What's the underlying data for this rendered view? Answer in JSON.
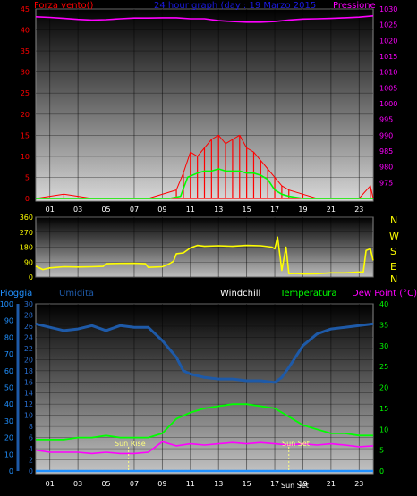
{
  "header": {
    "left_label": "Forza vento()",
    "title": "24 hour graph (day : 19 Marzo 2015",
    "right_label": "Pressione"
  },
  "middle": {
    "compass": [
      "N",
      "W",
      "S",
      "E",
      "N"
    ]
  },
  "legend": {
    "rain": "Pioggia",
    "humidity": "Umidita",
    "windchill": "Windchill",
    "temperature": "Temperatura",
    "dewpoint": "Dew Point (°C)"
  },
  "annotations": {
    "sunrise": "Sun Rise",
    "sunset": "Sun Set",
    "sunset_time_label": "Sun Set"
  },
  "colors": {
    "wind": "#ff0000",
    "wind_avg": "#00ff00",
    "pressure": "#ff00ff",
    "direction": "#ffff00",
    "humidity": "#1e5aa8",
    "temperature": "#00ff00",
    "dewpoint": "#ff00ff",
    "rain": "#2090ff",
    "title": "#1a1ae0"
  },
  "chart_data": [
    {
      "type": "line",
      "name": "wind-pressure",
      "x_ticks": [
        "01",
        "03",
        "05",
        "07",
        "09",
        "11",
        "13",
        "15",
        "17",
        "19",
        "21",
        "23"
      ],
      "xlim": [
        0,
        24
      ],
      "left_axis": {
        "label": "Forza vento()",
        "lim": [
          0,
          45
        ],
        "ticks": [
          0,
          5,
          10,
          15,
          20,
          25,
          30,
          35,
          40,
          45
        ]
      },
      "right_axis": {
        "label": "Pressione",
        "lim": [
          970,
          1030
        ],
        "ticks": [
          975,
          980,
          985,
          990,
          995,
          1000,
          1005,
          1010,
          1015,
          1020,
          1025,
          1030
        ]
      },
      "series": [
        {
          "name": "Pressione",
          "axis": "right",
          "x": [
            0,
            1,
            2,
            3,
            4,
            5,
            6,
            7,
            8,
            9,
            10,
            11,
            12,
            13,
            14,
            15,
            16,
            17,
            18,
            19,
            20,
            21,
            22,
            23,
            24
          ],
          "y": [
            1027.5,
            1027.3,
            1027.0,
            1026.7,
            1026.5,
            1026.6,
            1026.9,
            1027.1,
            1027.1,
            1027.2,
            1027.2,
            1026.9,
            1026.9,
            1026.3,
            1026.0,
            1025.8,
            1025.8,
            1026.0,
            1026.5,
            1026.8,
            1026.9,
            1027.0,
            1027.2,
            1027.4,
            1027.8
          ]
        },
        {
          "name": "Forza vento()",
          "axis": "left",
          "x": [
            0,
            2,
            4,
            6,
            8,
            10,
            10.5,
            11,
            11.5,
            12,
            12.5,
            13,
            13.5,
            14,
            14.5,
            15,
            15.5,
            16,
            16.5,
            17,
            17.5,
            18,
            19,
            20,
            21,
            22,
            23,
            23.8,
            24
          ],
          "y": [
            0,
            1,
            0,
            0,
            0,
            2,
            6,
            11,
            10,
            12,
            14,
            15,
            13,
            14,
            15,
            12,
            11,
            9,
            7,
            5,
            3,
            2,
            1,
            0,
            0,
            0,
            0,
            3,
            0
          ]
        },
        {
          "name": "wind-avg",
          "axis": "left",
          "x": [
            0,
            9.5,
            10.3,
            10.8,
            11.5,
            12,
            12.5,
            13,
            13.5,
            14,
            14.5,
            15,
            15.5,
            16,
            16.5,
            17,
            17.5,
            18,
            19,
            24
          ],
          "y": [
            0,
            0,
            0.5,
            5,
            6,
            6.5,
            6.5,
            7,
            6.5,
            6.5,
            6.5,
            6,
            6,
            5.5,
            4.5,
            2,
            1,
            0.5,
            0,
            0
          ]
        }
      ]
    },
    {
      "type": "line",
      "name": "wind-direction",
      "xlim": [
        0,
        24
      ],
      "ylim": [
        0,
        360
      ],
      "y_ticks": [
        0,
        90,
        180,
        270,
        360
      ],
      "series": [
        {
          "name": "direction",
          "x": [
            0,
            0.5,
            1,
            2,
            3,
            4,
            4.8,
            5,
            6,
            7,
            7.8,
            8,
            9,
            9.4,
            9.8,
            10,
            10.5,
            11,
            11.5,
            12,
            13,
            14,
            15,
            16,
            16.8,
            17,
            17.2,
            17.5,
            17.8,
            18,
            18.5,
            19,
            20,
            21,
            22,
            23,
            23.3,
            23.5,
            23.8,
            24
          ],
          "y": [
            65,
            45,
            55,
            62,
            60,
            62,
            64,
            80,
            82,
            83,
            80,
            58,
            62,
            75,
            95,
            140,
            145,
            175,
            190,
            185,
            188,
            185,
            190,
            188,
            180,
            170,
            240,
            40,
            180,
            20,
            22,
            18,
            20,
            25,
            25,
            30,
            30,
            160,
            170,
            100
          ]
        }
      ]
    },
    {
      "type": "line",
      "name": "temp-humidity",
      "xlim": [
        0,
        24
      ],
      "x_ticks": [
        "01",
        "03",
        "05",
        "07",
        "09",
        "11",
        "13",
        "15",
        "17",
        "19",
        "21",
        "23"
      ],
      "left_axis_outer": {
        "label": "Pioggia",
        "lim": [
          0,
          100
        ],
        "ticks": [
          0,
          10,
          20,
          30,
          40,
          50,
          60,
          70,
          80,
          90,
          100
        ]
      },
      "left_axis_inner": {
        "label": "Umidita",
        "lim": [
          0,
          30
        ],
        "ticks": [
          0,
          2,
          4,
          6,
          8,
          10,
          12,
          14,
          16,
          18,
          20,
          22,
          24,
          26,
          28,
          30
        ]
      },
      "right_axis": {
        "label": "Dew Point (°C)",
        "lim": [
          0,
          40
        ],
        "ticks": [
          0,
          5,
          10,
          15,
          20,
          25,
          30,
          35,
          40
        ]
      },
      "series": [
        {
          "name": "Umidita",
          "axis": "outer",
          "x": [
            0,
            1,
            2,
            3,
            4,
            5,
            6,
            7,
            8,
            8.5,
            9,
            10,
            10.5,
            11,
            12,
            13,
            14,
            15,
            16,
            17,
            17.5,
            18,
            19,
            20,
            21,
            22,
            23,
            24
          ],
          "y": [
            88,
            86,
            84,
            85,
            87,
            84,
            87,
            86,
            86,
            82,
            78,
            68,
            60,
            58,
            56,
            55,
            55,
            54,
            54,
            53,
            56,
            62,
            75,
            82,
            85,
            86,
            87,
            88
          ]
        },
        {
          "name": "Temperatura",
          "axis": "right",
          "x": [
            0,
            1,
            2,
            3,
            4,
            5,
            6,
            7,
            8,
            9,
            10,
            11,
            12,
            13,
            14,
            15,
            16,
            17,
            18,
            19,
            20,
            21,
            22,
            23,
            24
          ],
          "y": [
            7.5,
            7.5,
            7.5,
            8,
            8,
            8.5,
            8,
            8,
            8,
            9,
            12.5,
            14,
            15,
            15.5,
            16,
            16,
            15.5,
            15,
            13,
            11,
            10,
            9,
            9,
            8.5,
            8.5
          ]
        },
        {
          "name": "Dew Point (°C)",
          "axis": "right",
          "x": [
            0,
            1,
            2,
            3,
            4,
            5,
            6,
            7,
            8,
            9,
            10,
            11,
            12,
            13,
            14,
            15,
            16,
            17,
            18,
            19,
            20,
            21,
            22,
            23,
            24
          ],
          "y": [
            5,
            4.5,
            4.5,
            4.5,
            4.2,
            4.5,
            4.2,
            4.2,
            4.5,
            7,
            6,
            6.5,
            6.2,
            6.5,
            6.8,
            6.5,
            6.8,
            6.5,
            6.2,
            6.5,
            6.2,
            6.5,
            6.2,
            5.8,
            6
          ]
        },
        {
          "name": "Pioggia",
          "axis": "outer",
          "x": [
            0,
            24
          ],
          "y": [
            0,
            0
          ]
        }
      ],
      "sunrise_x": 6.6,
      "sunset_x": 18.0
    }
  ]
}
